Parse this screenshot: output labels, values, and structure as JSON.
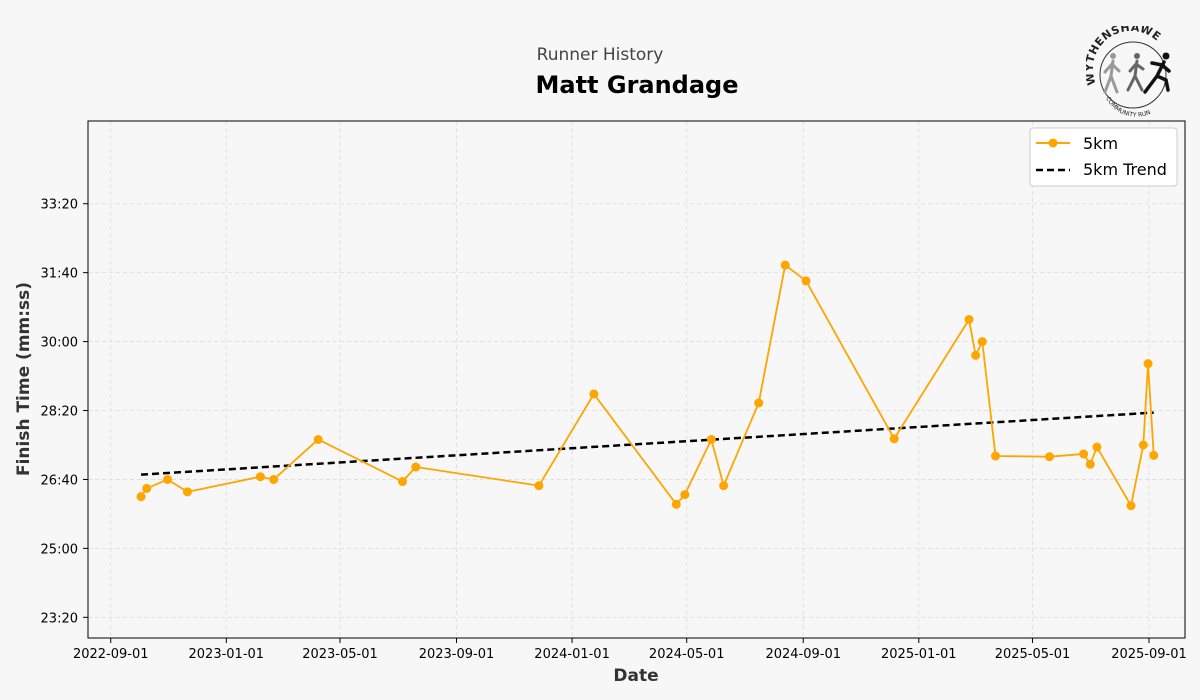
{
  "header": {
    "subtitle": "Runner History",
    "title": "Matt Grandage"
  },
  "logo": {
    "top_text": "WYTHENSHAWE",
    "bottom_text": "COMMUNITY RUN"
  },
  "chart_data": {
    "type": "line",
    "xlabel": "Date",
    "ylabel": "Finish Time (mm:ss)",
    "xlim": [
      "2022-08-08",
      "2025-10-09"
    ],
    "ylim_seconds": [
      1370,
      2120
    ],
    "x_ticks": [
      "2022-09-01",
      "2023-01-01",
      "2023-05-01",
      "2023-09-01",
      "2024-01-01",
      "2024-05-01",
      "2024-09-01",
      "2025-01-01",
      "2025-05-01",
      "2025-09-01"
    ],
    "y_ticks": [
      "23:20",
      "25:00",
      "26:40",
      "28:20",
      "30:00",
      "31:40",
      "33:20"
    ],
    "grid": true,
    "legend_position": "top-right",
    "colors": {
      "series": "#FFA500",
      "trend": "#000000"
    },
    "series": [
      {
        "name": "5km",
        "points": [
          {
            "date": "2022-10-03",
            "time": "26:15"
          },
          {
            "date": "2022-10-09",
            "time": "26:27"
          },
          {
            "date": "2022-10-31",
            "time": "26:40"
          },
          {
            "date": "2022-11-21",
            "time": "26:22"
          },
          {
            "date": "2023-02-06",
            "time": "26:44"
          },
          {
            "date": "2023-02-20",
            "time": "26:40"
          },
          {
            "date": "2023-04-08",
            "time": "27:38"
          },
          {
            "date": "2023-07-06",
            "time": "26:37"
          },
          {
            "date": "2023-07-20",
            "time": "26:58"
          },
          {
            "date": "2023-11-27",
            "time": "26:31"
          },
          {
            "date": "2024-01-24",
            "time": "28:44"
          },
          {
            "date": "2024-04-20",
            "time": "26:04"
          },
          {
            "date": "2024-04-29",
            "time": "26:18"
          },
          {
            "date": "2024-05-27",
            "time": "27:38"
          },
          {
            "date": "2024-06-09",
            "time": "26:31"
          },
          {
            "date": "2024-07-16",
            "time": "28:31"
          },
          {
            "date": "2024-08-13",
            "time": "31:51"
          },
          {
            "date": "2024-09-04",
            "time": "31:28"
          },
          {
            "date": "2024-12-06",
            "time": "27:39"
          },
          {
            "date": "2025-02-23",
            "time": "30:32"
          },
          {
            "date": "2025-03-02",
            "time": "29:40"
          },
          {
            "date": "2025-03-09",
            "time": "30:00"
          },
          {
            "date": "2025-03-23",
            "time": "27:14"
          },
          {
            "date": "2025-05-19",
            "time": "27:13"
          },
          {
            "date": "2025-06-24",
            "time": "27:17"
          },
          {
            "date": "2025-07-01",
            "time": "27:02"
          },
          {
            "date": "2025-07-08",
            "time": "27:27"
          },
          {
            "date": "2025-08-13",
            "time": "26:02"
          },
          {
            "date": "2025-08-26",
            "time": "27:30"
          },
          {
            "date": "2025-08-31",
            "time": "29:28"
          },
          {
            "date": "2025-09-06",
            "time": "27:15"
          }
        ]
      },
      {
        "name": "5km Trend",
        "style": "dashed",
        "points": [
          {
            "date": "2022-10-03",
            "time": "26:47"
          },
          {
            "date": "2025-09-06",
            "time": "28:17"
          }
        ]
      }
    ]
  }
}
